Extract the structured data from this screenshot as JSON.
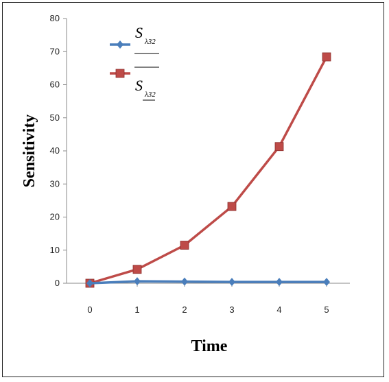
{
  "chart_data": {
    "type": "line",
    "title": "",
    "xlabel": "Time",
    "ylabel": "Sensitivity",
    "x": [
      0,
      1,
      2,
      3,
      4,
      5
    ],
    "ylim": [
      0,
      80
    ],
    "y_ticks": [
      0,
      10,
      20,
      30,
      40,
      50,
      60,
      70,
      80
    ],
    "grid": false,
    "legend_position": "top-left",
    "series": [
      {
        "name": "S_{λ32}",
        "legend_main": "S",
        "legend_sub": "λ32",
        "overline": false,
        "color": "#4a7ebb",
        "marker": "diamond",
        "values": [
          0,
          0.6,
          0.5,
          0.4,
          0.4,
          0.4
        ]
      },
      {
        "name": "S̄_{λ32}",
        "legend_main": "S",
        "legend_sub": "λ32",
        "overline": true,
        "color": "#be4b48",
        "marker": "square",
        "values": [
          0,
          4.2,
          11.5,
          23.2,
          41.3,
          68.4
        ]
      }
    ]
  }
}
